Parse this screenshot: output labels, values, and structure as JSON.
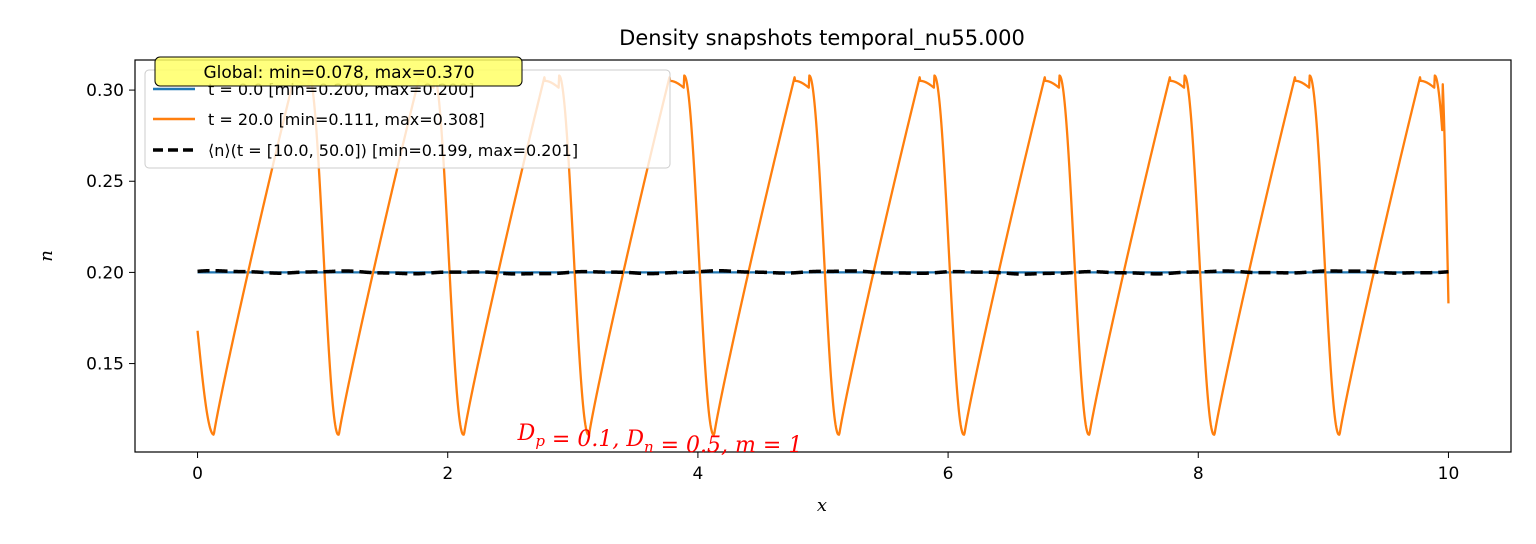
{
  "chart_data": {
    "type": "line",
    "title": "Density snapshots temporal_nu55.000",
    "xlabel": "x",
    "ylabel": "n",
    "xlim": [
      -0.5,
      10.5
    ],
    "ylim": [
      0.1015,
      0.3165
    ],
    "xticks": [
      0,
      2,
      4,
      6,
      8,
      10
    ],
    "xtick_labels": [
      "0",
      "2",
      "4",
      "6",
      "8",
      "10"
    ],
    "yticks": [
      0.15,
      0.2,
      0.25,
      0.3
    ],
    "ytick_labels": [
      "0.15",
      "0.20",
      "0.25",
      "0.30"
    ],
    "grid": false,
    "legend_position": "top-left",
    "series": [
      {
        "name": "t = 0.0 [min=0.200, max=0.200]",
        "color": "#1f77b4",
        "style": "solid",
        "kind": "constant",
        "x_range": [
          0,
          10
        ],
        "value": 0.2
      },
      {
        "name": "t = 20.0 [min=0.111, max=0.308]",
        "color": "#ff7f0e",
        "style": "solid",
        "kind": "sawtooth",
        "x_range": [
          0,
          10
        ],
        "start_value": 0.168,
        "end_value": 0.183,
        "period": 1.0,
        "min_value": 0.111,
        "max_value": 0.308,
        "min_phase": 0.13,
        "max_phase": 0.89
      },
      {
        "name": "⟨n⟩(t = [10.0, 50.0]) [min=0.199, max=0.201]",
        "color": "#000000",
        "style": "dashed",
        "kind": "noisy-constant",
        "x_range": [
          0,
          10
        ],
        "value": 0.2,
        "min_value": 0.199,
        "max_value": 0.201
      }
    ],
    "annotations": {
      "global_box": "Global: min=0.078, max=0.370",
      "global_box_color": "#ffff66",
      "params_text": "D_p = 0.1, D_n = 0.5, m = 1",
      "params_color": "#ff0000"
    }
  }
}
